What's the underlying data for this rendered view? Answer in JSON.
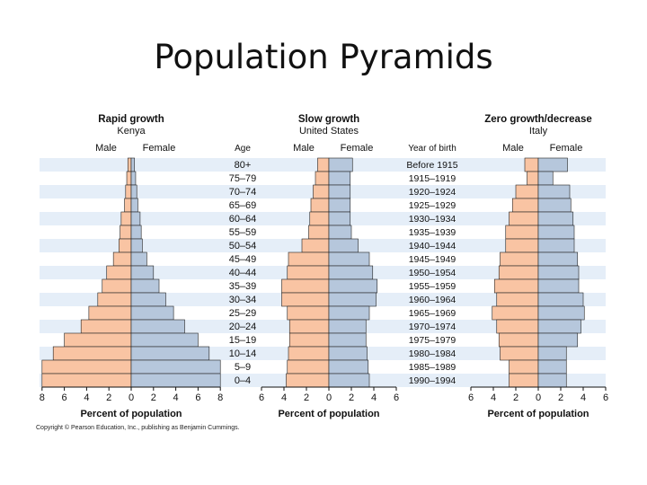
{
  "slide": {
    "title": "Population Pyramids",
    "copyright": "Copyright © Pearson Education, Inc., publishing as Benjamin Cummings."
  },
  "chart_data": {
    "type": "population-pyramid",
    "age_groups": [
      "80+",
      "75–79",
      "70–74",
      "65–69",
      "60–64",
      "55–59",
      "50–54",
      "45–49",
      "40–44",
      "35–39",
      "30–34",
      "25–29",
      "20–24",
      "15–19",
      "10–14",
      "5–9",
      "0–4"
    ],
    "years_of_birth": [
      "Before 1915",
      "1915–1919",
      "1920–1924",
      "1925–1929",
      "1930–1934",
      "1935–1939",
      "1940–1944",
      "1945–1949",
      "1950–1954",
      "1955–1959",
      "1960–1964",
      "1965–1969",
      "1970–1974",
      "1975–1979",
      "1980–1984",
      "1985–1989",
      "1990–1994"
    ],
    "labels": {
      "male": "Male",
      "female": "Female",
      "age": "Age",
      "year_of_birth": "Year of birth",
      "xlabel": "Percent of population"
    },
    "colors": {
      "male": "#f9c4a3",
      "female": "#b6c7dc",
      "band": "#e5eef8",
      "bar_edge": "#222222"
    },
    "pyramids": [
      {
        "title": "Rapid growth",
        "country": "Kenya",
        "xlim": [
          -8,
          8
        ],
        "ticks": [
          "8",
          "6",
          "4",
          "2",
          "0",
          "2",
          "4",
          "6",
          "8"
        ],
        "male": [
          0.3,
          0.4,
          0.5,
          0.6,
          0.9,
          1.0,
          1.1,
          1.6,
          2.2,
          2.6,
          3.0,
          3.8,
          4.5,
          6.0,
          7.0,
          8.0,
          8.0
        ],
        "female": [
          0.3,
          0.4,
          0.5,
          0.6,
          0.8,
          0.9,
          1.0,
          1.4,
          2.0,
          2.5,
          3.1,
          3.8,
          4.8,
          6.0,
          7.0,
          8.0,
          8.0
        ]
      },
      {
        "title": "Slow growth",
        "country": "United States",
        "xlim": [
          -6,
          6
        ],
        "ticks": [
          "6",
          "4",
          "2",
          "0",
          "2",
          "4",
          "6"
        ],
        "male": [
          1.0,
          1.2,
          1.4,
          1.6,
          1.7,
          1.8,
          2.4,
          3.6,
          3.7,
          4.2,
          4.2,
          3.7,
          3.5,
          3.5,
          3.6,
          3.7,
          3.8
        ],
        "female": [
          2.1,
          1.9,
          1.9,
          1.9,
          1.9,
          2.0,
          2.6,
          3.6,
          3.9,
          4.3,
          4.2,
          3.6,
          3.3,
          3.3,
          3.4,
          3.5,
          3.6
        ]
      },
      {
        "title": "Zero growth/decrease",
        "country": "Italy",
        "xlim": [
          -6,
          6
        ],
        "ticks": [
          "6",
          "4",
          "2",
          "0",
          "2",
          "4",
          "6"
        ],
        "male": [
          1.2,
          1.0,
          2.0,
          2.3,
          2.6,
          2.9,
          2.9,
          3.4,
          3.5,
          3.9,
          3.7,
          4.1,
          3.7,
          3.5,
          3.4,
          2.6,
          2.6
        ],
        "female": [
          2.6,
          1.3,
          2.8,
          2.9,
          3.1,
          3.2,
          3.2,
          3.5,
          3.6,
          3.6,
          4.0,
          4.1,
          3.8,
          3.5,
          2.5,
          2.5,
          2.5
        ]
      }
    ]
  }
}
